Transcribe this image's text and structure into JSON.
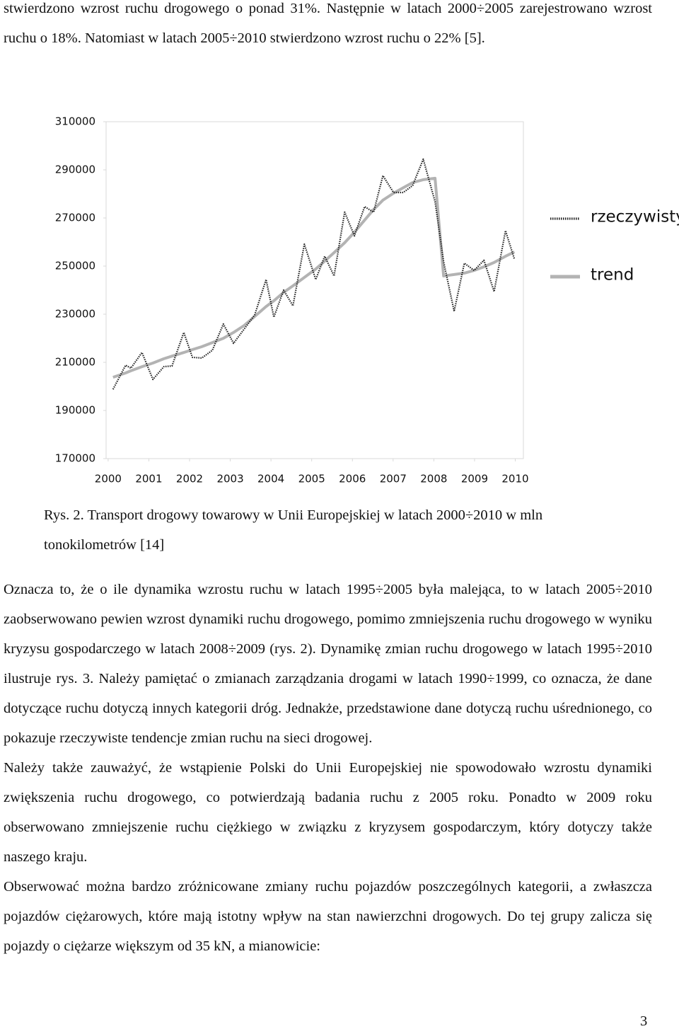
{
  "text_top": "stwierdzono wzrost ruchu drogowego o ponad 31%. Następnie w latach 2000÷2005 zarejestrowano wzrost ruchu o 18%. Natomiast w latach 2005÷2010 stwierdzono wzrost ruchu o 22% [5].",
  "chart_data": {
    "type": "line",
    "x": [
      2000.12,
      2000.43,
      2000.56,
      2000.83,
      2001.1,
      2001.37,
      2001.57,
      2001.86,
      2002.07,
      2002.3,
      2002.56,
      2002.83,
      2003.08,
      2003.34,
      2003.6,
      2003.88,
      2004.07,
      2004.31,
      2004.54,
      2004.82,
      2005.1,
      2005.32,
      2005.55,
      2005.81,
      2006.05,
      2006.3,
      2006.52,
      2006.75,
      2007.01,
      2007.25,
      2007.48,
      2007.74,
      2008.03,
      2008.24,
      2008.5,
      2008.75,
      2008.99,
      2009.23,
      2009.48,
      2009.76,
      2009.98
    ],
    "series": [
      {
        "name": "rzeczywisty",
        "color": "#222222",
        "values": [
          198800,
          208800,
          207600,
          214100,
          202900,
          208200,
          208500,
          222400,
          212100,
          211800,
          215000,
          225900,
          217900,
          223800,
          229700,
          244400,
          228800,
          240000,
          233500,
          259100,
          244400,
          254100,
          245900,
          272400,
          262600,
          274700,
          272400,
          287600,
          280600,
          280600,
          283500,
          294400,
          276800,
          251800,
          231200,
          251200,
          248200,
          252400,
          239400,
          264700,
          252900
        ]
      },
      {
        "name": "trend",
        "color": "#b3b3b3",
        "values": [
          203800,
          205600,
          206500,
          208200,
          209700,
          211500,
          212600,
          214100,
          215300,
          216500,
          218200,
          220000,
          222400,
          225300,
          229100,
          233200,
          235600,
          239100,
          241800,
          245300,
          248800,
          252100,
          255600,
          259700,
          264100,
          269100,
          273500,
          277400,
          280300,
          282600,
          284700,
          285900,
          286500,
          245900,
          246500,
          247100,
          248200,
          249700,
          251500,
          254100,
          255900
        ]
      }
    ],
    "xlim": [
      1999.95,
      2010.2
    ],
    "xticks": [
      2000,
      2001,
      2002,
      2003,
      2004,
      2005,
      2006,
      2007,
      2008,
      2009,
      2010
    ],
    "ylim": [
      170000,
      310000
    ],
    "yticks": [
      170000,
      190000,
      210000,
      230000,
      250000,
      270000,
      290000,
      310000
    ],
    "grid": false,
    "legend": "right"
  },
  "caption": "Rys. 2. Transport drogowy towarowy w Unii Europejskiej  w latach 2000÷2010 w mln tonokilometrów [14]",
  "paragraphs": [
    "Oznacza to, że o ile dynamika wzrostu ruchu w latach 1995÷2005 była malejąca, to w latach 2005÷2010 zaobserwowano pewien wzrost dynamiki ruchu drogowego, pomimo zmniejszenia ruchu drogowego w wyniku kryzysu gospodarczego w latach 2008÷2009 (rys. 2). Dynamikę zmian ruchu drogowego w latach 1995÷2010 ilustruje rys. 3. Należy pamiętać o zmianach zarządzania drogami w latach 1990÷1999, co oznacza, że dane dotyczące ruchu dotyczą innych kategorii dróg. Jednakże, przedstawione dane dotyczą ruchu uśrednionego, co pokazuje rzeczywiste tendencje zmian ruchu na sieci drogowej.",
    "Należy także zauważyć, że wstąpienie Polski do Unii Europejskiej nie spowodowało wzrostu dynamiki zwiększenia ruchu drogowego, co potwierdzają badania ruchu z 2005 roku. Ponadto w 2009 roku obserwowano zmniejszenie ruchu ciężkiego w związku z kryzysem gospodarczym, który dotyczy także naszego kraju.",
    "Obserwować można bardzo zróżnicowane zmiany ruchu pojazdów poszczególnych kategorii, a zwłaszcza pojazdów ciężarowych, które mają istotny wpływ na stan nawierzchni drogowych. Do tej grupy zalicza się pojazdy o ciężarze większym od 35 kN, a mianowicie:"
  ],
  "page_number": "3"
}
